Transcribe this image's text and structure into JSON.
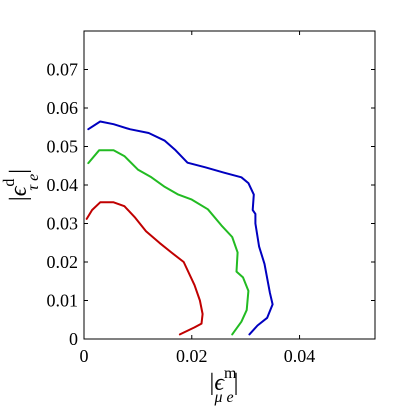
{
  "chart_data": {
    "type": "line",
    "xlabel": {
      "base": "ϵ",
      "sup": "m",
      "sub": "μ e"
    },
    "ylabel": {
      "base": "ϵ",
      "sup": "d",
      "sub": "τ e"
    },
    "xlim": [
      0,
      0.054
    ],
    "ylim": [
      0,
      0.08
    ],
    "xticks": [
      0,
      0.02,
      0.04
    ],
    "xtick_labels": [
      "0",
      "0.02",
      "0.04"
    ],
    "yticks": [
      0,
      0.01,
      0.02,
      0.03,
      0.04,
      0.05,
      0.06,
      0.07
    ],
    "ytick_labels": [
      "0",
      "0.01",
      "0.02",
      "0.03",
      "0.04",
      "0.05",
      "0.06",
      "0.07"
    ],
    "grid": false,
    "series": [
      {
        "color": "#0000c0",
        "points": [
          [
            0.0008,
            0.0545
          ],
          [
            0.003,
            0.0565
          ],
          [
            0.0055,
            0.0558
          ],
          [
            0.0085,
            0.0545
          ],
          [
            0.012,
            0.0535
          ],
          [
            0.015,
            0.0515
          ],
          [
            0.017,
            0.049
          ],
          [
            0.0192,
            0.0458
          ],
          [
            0.0225,
            0.0446
          ],
          [
            0.026,
            0.0432
          ],
          [
            0.0292,
            0.042
          ],
          [
            0.0305,
            0.0405
          ],
          [
            0.0315,
            0.0375
          ],
          [
            0.0313,
            0.0335
          ],
          [
            0.0318,
            0.0325
          ],
          [
            0.0318,
            0.03
          ],
          [
            0.0325,
            0.024
          ],
          [
            0.0335,
            0.0195
          ],
          [
            0.0345,
            0.012
          ],
          [
            0.035,
            0.009
          ],
          [
            0.034,
            0.0055
          ],
          [
            0.0322,
            0.0035
          ],
          [
            0.0307,
            0.0012
          ]
        ]
      },
      {
        "color": "#22bb22",
        "points": [
          [
            0.0008,
            0.0457
          ],
          [
            0.0028,
            0.049
          ],
          [
            0.0055,
            0.049
          ],
          [
            0.0075,
            0.0475
          ],
          [
            0.01,
            0.044
          ],
          [
            0.0125,
            0.042
          ],
          [
            0.015,
            0.0395
          ],
          [
            0.0175,
            0.0375
          ],
          [
            0.02,
            0.0362
          ],
          [
            0.023,
            0.0337
          ],
          [
            0.0255,
            0.0295
          ],
          [
            0.0275,
            0.0265
          ],
          [
            0.0285,
            0.0225
          ],
          [
            0.0283,
            0.0175
          ],
          [
            0.0295,
            0.016
          ],
          [
            0.0305,
            0.0125
          ],
          [
            0.0302,
            0.0075
          ],
          [
            0.0292,
            0.0045
          ],
          [
            0.0275,
            0.0012
          ]
        ]
      },
      {
        "color": "#c00000",
        "points": [
          [
            0.0005,
            0.0312
          ],
          [
            0.0015,
            0.0335
          ],
          [
            0.003,
            0.0355
          ],
          [
            0.0055,
            0.0355
          ],
          [
            0.0075,
            0.0345
          ],
          [
            0.0095,
            0.0315
          ],
          [
            0.0115,
            0.028
          ],
          [
            0.014,
            0.025
          ],
          [
            0.0162,
            0.0225
          ],
          [
            0.0185,
            0.02
          ],
          [
            0.0205,
            0.014
          ],
          [
            0.0215,
            0.01
          ],
          [
            0.022,
            0.0065
          ],
          [
            0.0218,
            0.004
          ],
          [
            0.0205,
            0.003
          ],
          [
            0.0178,
            0.0012
          ]
        ]
      }
    ]
  }
}
